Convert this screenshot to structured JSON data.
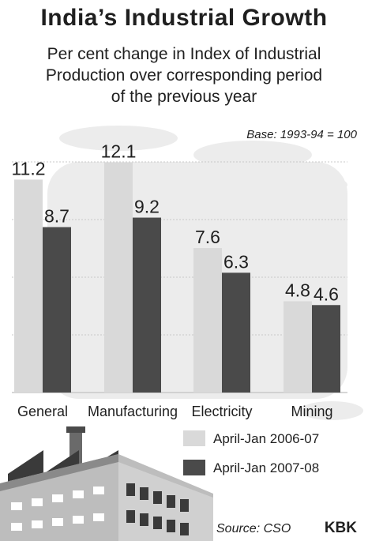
{
  "colors": {
    "series1": "#d9d9d9",
    "series2": "#4a4a4a",
    "clouds": "#ececec",
    "grid": "#c8c8c8",
    "factory_wall": "#bdbdbd",
    "factory_dark": "#3a3a3a"
  },
  "header": {
    "title": "India’s Industrial Growth",
    "subtitle_line1": "Per cent change in Index of Industrial",
    "subtitle_line2": "Production over corresponding period",
    "subtitle_line3": "of the previous year",
    "base_note": "Base: 1993-94 = 100"
  },
  "footer": {
    "source": "Source: CSO",
    "brand": "KBK"
  },
  "chart_data": {
    "type": "bar",
    "categories": [
      "General",
      "Manufacturing",
      "Electricity",
      "Mining"
    ],
    "series": [
      {
        "name": "April-Jan 2006-07",
        "values": [
          11.2,
          12.1,
          7.6,
          4.8
        ]
      },
      {
        "name": "April-Jan 2007-08",
        "values": [
          8.7,
          9.2,
          6.3,
          4.6
        ]
      }
    ],
    "title": "India’s Industrial Growth",
    "xlabel": "",
    "ylabel": "",
    "ylim": [
      0,
      14
    ],
    "grid": true,
    "legend_position": "bottom-right"
  }
}
